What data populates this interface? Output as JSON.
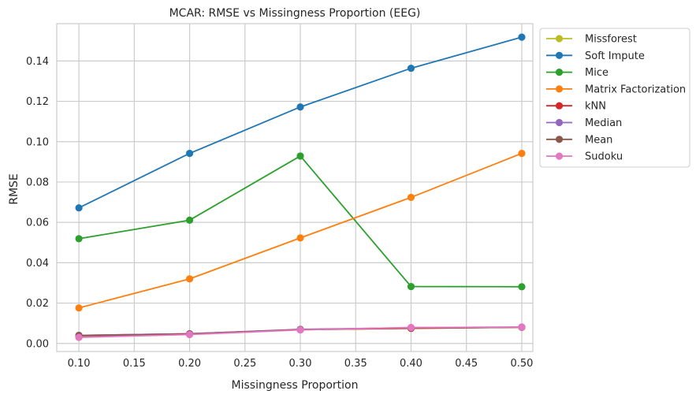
{
  "chart_data": {
    "type": "line",
    "title": "MCAR: RMSE vs Missingness Proportion (EEG)",
    "xlabel": "Missingness Proportion",
    "ylabel": "RMSE",
    "x": [
      0.1,
      0.2,
      0.3,
      0.4,
      0.5
    ],
    "xlim": [
      0.08,
      0.51
    ],
    "ylim": [
      -0.004,
      0.1585
    ],
    "xticks": [
      "0.10",
      "0.15",
      "0.20",
      "0.25",
      "0.30",
      "0.35",
      "0.40",
      "0.45",
      "0.50"
    ],
    "yticks": [
      "0.00",
      "0.02",
      "0.04",
      "0.06",
      "0.08",
      "0.10",
      "0.12",
      "0.14"
    ],
    "grid": true,
    "legend_placement": "outside-upper-right",
    "series": [
      {
        "name": "Missforest",
        "color": "#bcbd22",
        "values": [
          0.0035,
          0.0045,
          0.0068,
          0.0075,
          0.008
        ]
      },
      {
        "name": "Soft Impute",
        "color": "#1f77b4",
        "values": [
          0.0672,
          0.0942,
          0.1172,
          0.1364,
          0.1518
        ]
      },
      {
        "name": "Mice",
        "color": "#2ca02c",
        "values": [
          0.0519,
          0.0611,
          0.0929,
          0.0282,
          0.0281
        ]
      },
      {
        "name": "Matrix Factorization",
        "color": "#ff7f0e",
        "values": [
          0.0176,
          0.032,
          0.0523,
          0.0724,
          0.0942
        ]
      },
      {
        "name": "kNN",
        "color": "#d62728",
        "values": [
          0.004,
          0.0048,
          0.0068,
          0.0075,
          0.008
        ]
      },
      {
        "name": "Median",
        "color": "#9467bd",
        "values": [
          0.004,
          0.0048,
          0.007,
          0.0078,
          0.0081
        ]
      },
      {
        "name": "Mean",
        "color": "#8c564b",
        "values": [
          0.0038,
          0.0047,
          0.0069,
          0.0077,
          0.008
        ]
      },
      {
        "name": "Sudoku",
        "color": "#e377c2",
        "values": [
          0.003,
          0.0044,
          0.0067,
          0.0079,
          0.0081
        ]
      }
    ]
  }
}
